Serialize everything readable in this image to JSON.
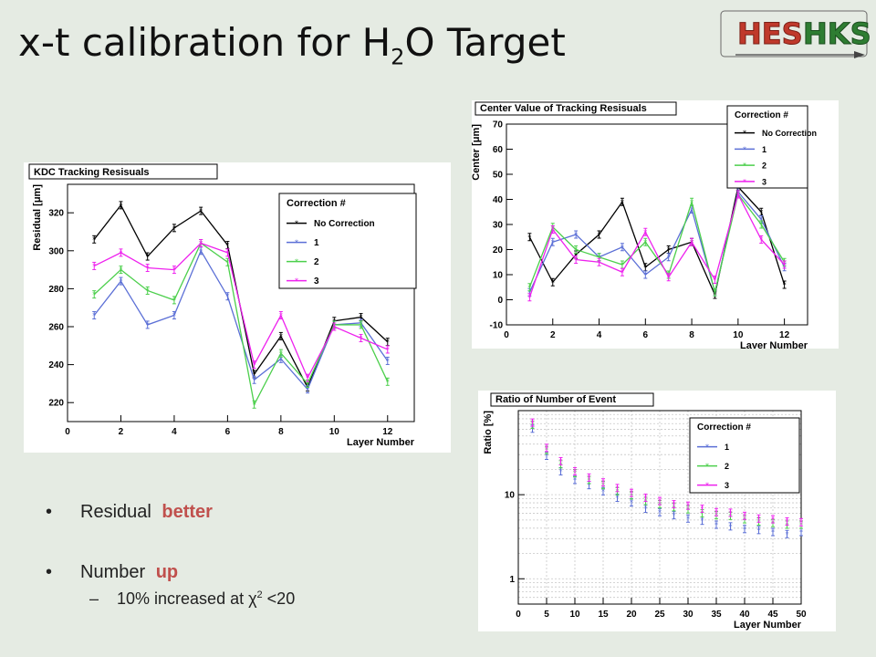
{
  "slide": {
    "title_main": "x-t calibration for H",
    "title_sub": "2",
    "title_end": "O Target",
    "logo_left": "HES",
    "logo_right": "HKS",
    "bullets": [
      {
        "label": "Residual",
        "highlight": "better"
      },
      {
        "label": "Number",
        "highlight": "up"
      }
    ],
    "subbullet": {
      "pre": "10% increased at χ",
      "sup": "2",
      "post": " <20"
    },
    "bullet_char": "•",
    "dash_char": "–",
    "highlight_color": "#c0504d"
  },
  "chart_data": [
    {
      "type": "line",
      "title": "KDC Tracking Resisuals",
      "xlabel": "Layer Number",
      "ylabel": "Residual [μm]",
      "xlim": [
        0,
        13
      ],
      "ylim": [
        210,
        335
      ],
      "xticks": [
        0,
        2,
        4,
        6,
        8,
        10,
        12
      ],
      "yticks": [
        220,
        240,
        260,
        280,
        300,
        320
      ],
      "legend_title": "Correction #",
      "legend_position": "top-right",
      "x": [
        1,
        2,
        3,
        4,
        5,
        6,
        7,
        8,
        9,
        10,
        11,
        12
      ],
      "series": [
        {
          "name": "No Correction",
          "color": "#000000",
          "values": [
            306,
            324,
            297,
            312,
            321,
            303,
            235,
            255,
            228,
            263,
            265,
            252
          ]
        },
        {
          "name": "1",
          "color": "#5b6fd6",
          "values": [
            266,
            284,
            261,
            266,
            300,
            276,
            232,
            243,
            227,
            261,
            262,
            242
          ]
        },
        {
          "name": "2",
          "color": "#4ccf4c",
          "values": [
            277,
            290,
            279,
            274,
            304,
            294,
            219,
            246,
            230,
            261,
            261,
            231
          ]
        },
        {
          "name": "3",
          "color": "#ee22ee",
          "values": [
            292,
            299,
            291,
            290,
            304,
            299,
            240,
            266,
            233,
            260,
            254,
            248
          ]
        }
      ]
    },
    {
      "type": "line",
      "title": "Center Value of  Tracking Resisuals",
      "xlabel": "Layer Number",
      "ylabel": "Center [μm]",
      "xlim": [
        0,
        13
      ],
      "ylim": [
        -10,
        70
      ],
      "xticks": [
        0,
        2,
        4,
        6,
        8,
        10,
        12
      ],
      "yticks": [
        -10,
        0,
        10,
        20,
        30,
        40,
        50,
        60,
        70
      ],
      "legend_title": "Correction #",
      "legend_position": "top-right",
      "x": [
        1,
        2,
        3,
        4,
        5,
        6,
        7,
        8,
        9,
        10,
        11,
        12
      ],
      "series": [
        {
          "name": "No Correction",
          "color": "#000000",
          "values": [
            25,
            7,
            18,
            26,
            39,
            13,
            20,
            23,
            2,
            45,
            35,
            6
          ]
        },
        {
          "name": "1",
          "color": "#5b6fd6",
          "values": [
            3,
            23,
            26,
            17,
            21,
            10,
            17,
            36,
            3,
            43,
            32,
            13
          ]
        },
        {
          "name": "2",
          "color": "#4ccf4c",
          "values": [
            5,
            29,
            20,
            17,
            14,
            23,
            10,
            39,
            3,
            42,
            30,
            15
          ]
        },
        {
          "name": "3",
          "color": "#ee22ee",
          "values": [
            1,
            28,
            16,
            15,
            11,
            27,
            9,
            23,
            8,
            42,
            24,
            14
          ]
        }
      ]
    },
    {
      "type": "scatter",
      "title": "Ratio of Number of Event",
      "xlabel": "Layer Number",
      "ylabel": "Ratio [%]",
      "xlim": [
        0,
        50
      ],
      "ylim": [
        0.5,
        100
      ],
      "log_y": true,
      "grid": true,
      "xticks": [
        0,
        5,
        10,
        15,
        20,
        25,
        30,
        35,
        40,
        45,
        50
      ],
      "yticks": [
        1,
        10
      ],
      "legend_title": "Correction #",
      "legend_position": "top-right",
      "x": [
        2.5,
        5,
        7.5,
        10,
        12.5,
        15,
        17.5,
        20,
        22.5,
        25,
        27.5,
        30,
        32.5,
        35,
        37.5,
        40,
        42.5,
        45,
        47.5,
        50
      ],
      "series": [
        {
          "name": "1",
          "color": "#5b6fd6",
          "values": [
            61,
            29,
            19,
            15,
            13,
            11,
            9.2,
            8.1,
            6.8,
            6.2,
            5.7,
            5.2,
            4.9,
            4.4,
            4.2,
            3.9,
            3.8,
            3.6,
            3.4,
            3.6
          ]
        },
        {
          "name": "2",
          "color": "#4ccf4c",
          "values": [
            68,
            34,
            23,
            18,
            15,
            13,
            11,
            9.8,
            8.4,
            7.7,
            7.1,
            6.7,
            6.0,
            5.7,
            5.6,
            5.1,
            4.8,
            4.6,
            4.4,
            4.4
          ]
        },
        {
          "name": "3",
          "color": "#ee22ee",
          "values": [
            72,
            36,
            25,
            19,
            16,
            14,
            12,
            10.5,
            9.2,
            8.4,
            7.7,
            7.4,
            6.8,
            6.2,
            6.1,
            5.6,
            5.2,
            5.1,
            4.8,
            4.7
          ]
        }
      ]
    }
  ]
}
